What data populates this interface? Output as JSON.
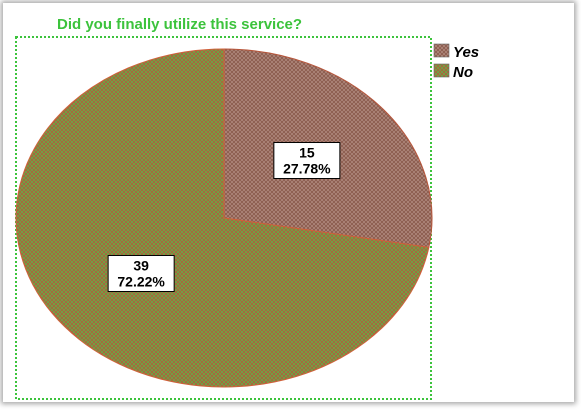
{
  "chart_data": {
    "type": "pie",
    "title": "Did you finally utilize this service?",
    "categories": [
      "Yes",
      "No"
    ],
    "values": [
      15,
      39
    ],
    "percent_labels": [
      "27.78%",
      "72.22%"
    ],
    "colors": [
      "#a8786a",
      "#5e9a3c"
    ],
    "title_color": "#3cc33c",
    "legend_position": "top-right",
    "grid": false
  }
}
